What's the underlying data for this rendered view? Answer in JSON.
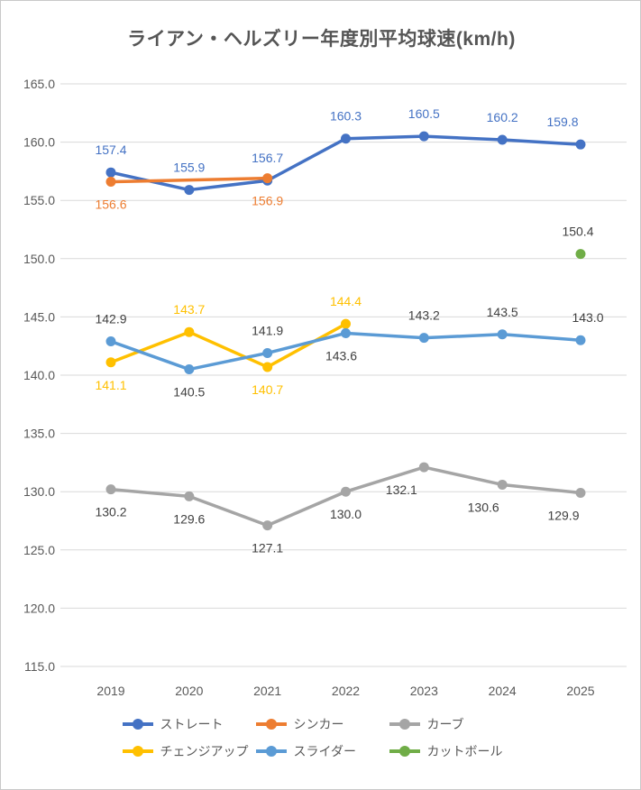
{
  "title": "ライアン・ヘルズリー年度別平均球速(km/h)",
  "chart_data": {
    "type": "line",
    "x": [
      2019,
      2020,
      2021,
      2022,
      2023,
      2024,
      2025
    ],
    "ylim": [
      115.0,
      165.0
    ],
    "ytick_step": 5,
    "ytick_format_decimals": 1,
    "grid": true,
    "legend_position": "bottom",
    "axis_text_color": "#595959",
    "data_label_dark_color": "#404040",
    "gridline_color": "#D9D9D9",
    "series": [
      {
        "name": "ストレート",
        "color": "#4472C4",
        "label_color": "#4472C4",
        "values": [
          157.4,
          155.9,
          156.7,
          160.3,
          160.5,
          160.2,
          159.8
        ],
        "label_pos": [
          "above",
          "above",
          "above",
          "above",
          "above",
          "above",
          "above"
        ],
        "label_dx": [
          0,
          0,
          0,
          0,
          0,
          0,
          -20
        ]
      },
      {
        "name": "シンカー",
        "color": "#ED7D31",
        "label_color": "#ED7D31",
        "values": [
          156.6,
          null,
          156.9,
          null,
          null,
          null,
          null
        ],
        "label_pos": [
          "below",
          null,
          "below",
          null,
          null,
          null,
          null
        ],
        "label_dx": [
          0,
          0,
          0,
          0,
          0,
          0,
          0
        ]
      },
      {
        "name": "カーブ",
        "color": "#A5A5A5",
        "label_color": "#404040",
        "values": [
          130.2,
          129.6,
          127.1,
          130.0,
          132.1,
          130.6,
          129.9
        ],
        "label_pos": [
          "below",
          "below",
          "below",
          "below",
          "below",
          "below",
          "below"
        ],
        "label_dx": [
          0,
          0,
          0,
          0,
          -25,
          -21,
          -19
        ]
      },
      {
        "name": "チェンジアップ",
        "color": "#FFC000",
        "label_color": "#FFC000",
        "values": [
          141.1,
          143.7,
          140.7,
          144.4,
          null,
          null,
          null
        ],
        "label_pos": [
          "below",
          "above",
          "below",
          "above",
          null,
          null,
          null
        ],
        "label_dx": [
          0,
          0,
          0,
          0,
          0,
          0,
          0
        ]
      },
      {
        "name": "スライダー",
        "color": "#5B9BD5",
        "label_color": "#404040",
        "values": [
          142.9,
          140.5,
          141.9,
          143.6,
          143.2,
          143.5,
          143.0
        ],
        "label_pos": [
          "above",
          "below",
          "above",
          "below",
          "above",
          "above",
          "above"
        ],
        "label_dx": [
          0,
          0,
          0,
          -5,
          0,
          0,
          8
        ]
      },
      {
        "name": "カットボール",
        "color": "#70AD47",
        "label_color": "#404040",
        "values": [
          null,
          null,
          null,
          null,
          null,
          null,
          150.4
        ],
        "label_pos": [
          null,
          null,
          null,
          null,
          null,
          null,
          "above"
        ],
        "label_dx": [
          0,
          0,
          0,
          0,
          0,
          0,
          -3
        ]
      }
    ]
  }
}
